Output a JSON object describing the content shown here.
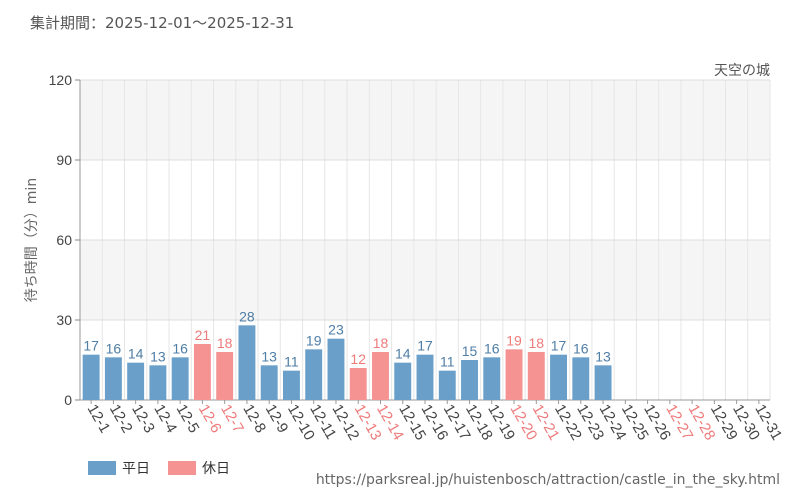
{
  "period_text": "集計期間：2025-12-01～2025-12-31",
  "attraction": "天空の城",
  "source_url": "https://parksreal.jp/huistenbosch/attraction/castle_in_the_sky.html",
  "colors": {
    "weekday": "#6a9fc9",
    "holiday": "#f59393",
    "weekday_label": "#4f7ea6",
    "holiday_label": "#ee7a7a"
  },
  "chart_data": {
    "type": "bar",
    "ylabel": "待ち時間（分）min",
    "ylim": [
      0,
      120
    ],
    "yticks": [
      0,
      30,
      60,
      90,
      120
    ],
    "legend": [
      {
        "key": "weekday",
        "label": "平日"
      },
      {
        "key": "holiday",
        "label": "休日"
      }
    ],
    "categories": [
      "12-1",
      "12-2",
      "12-3",
      "12-4",
      "12-5",
      "12-6",
      "12-7",
      "12-8",
      "12-9",
      "12-10",
      "12-11",
      "12-12",
      "12-13",
      "12-14",
      "12-15",
      "12-16",
      "12-17",
      "12-18",
      "12-19",
      "12-20",
      "12-21",
      "12-22",
      "12-23",
      "12-24",
      "12-25",
      "12-26",
      "12-27",
      "12-28",
      "12-29",
      "12-30",
      "12-31"
    ],
    "values": [
      17,
      16,
      14,
      13,
      16,
      21,
      18,
      28,
      13,
      11,
      19,
      23,
      12,
      18,
      14,
      17,
      11,
      15,
      16,
      19,
      18,
      17,
      16,
      13,
      null,
      null,
      null,
      null,
      null,
      null,
      null
    ],
    "day_type": [
      "weekday",
      "weekday",
      "weekday",
      "weekday",
      "weekday",
      "holiday",
      "holiday",
      "weekday",
      "weekday",
      "weekday",
      "weekday",
      "weekday",
      "holiday",
      "holiday",
      "weekday",
      "weekday",
      "weekday",
      "weekday",
      "weekday",
      "holiday",
      "holiday",
      "weekday",
      "weekday",
      "weekday",
      "weekday",
      "weekday",
      "holiday",
      "holiday",
      "weekday",
      "weekday",
      "weekday"
    ]
  }
}
